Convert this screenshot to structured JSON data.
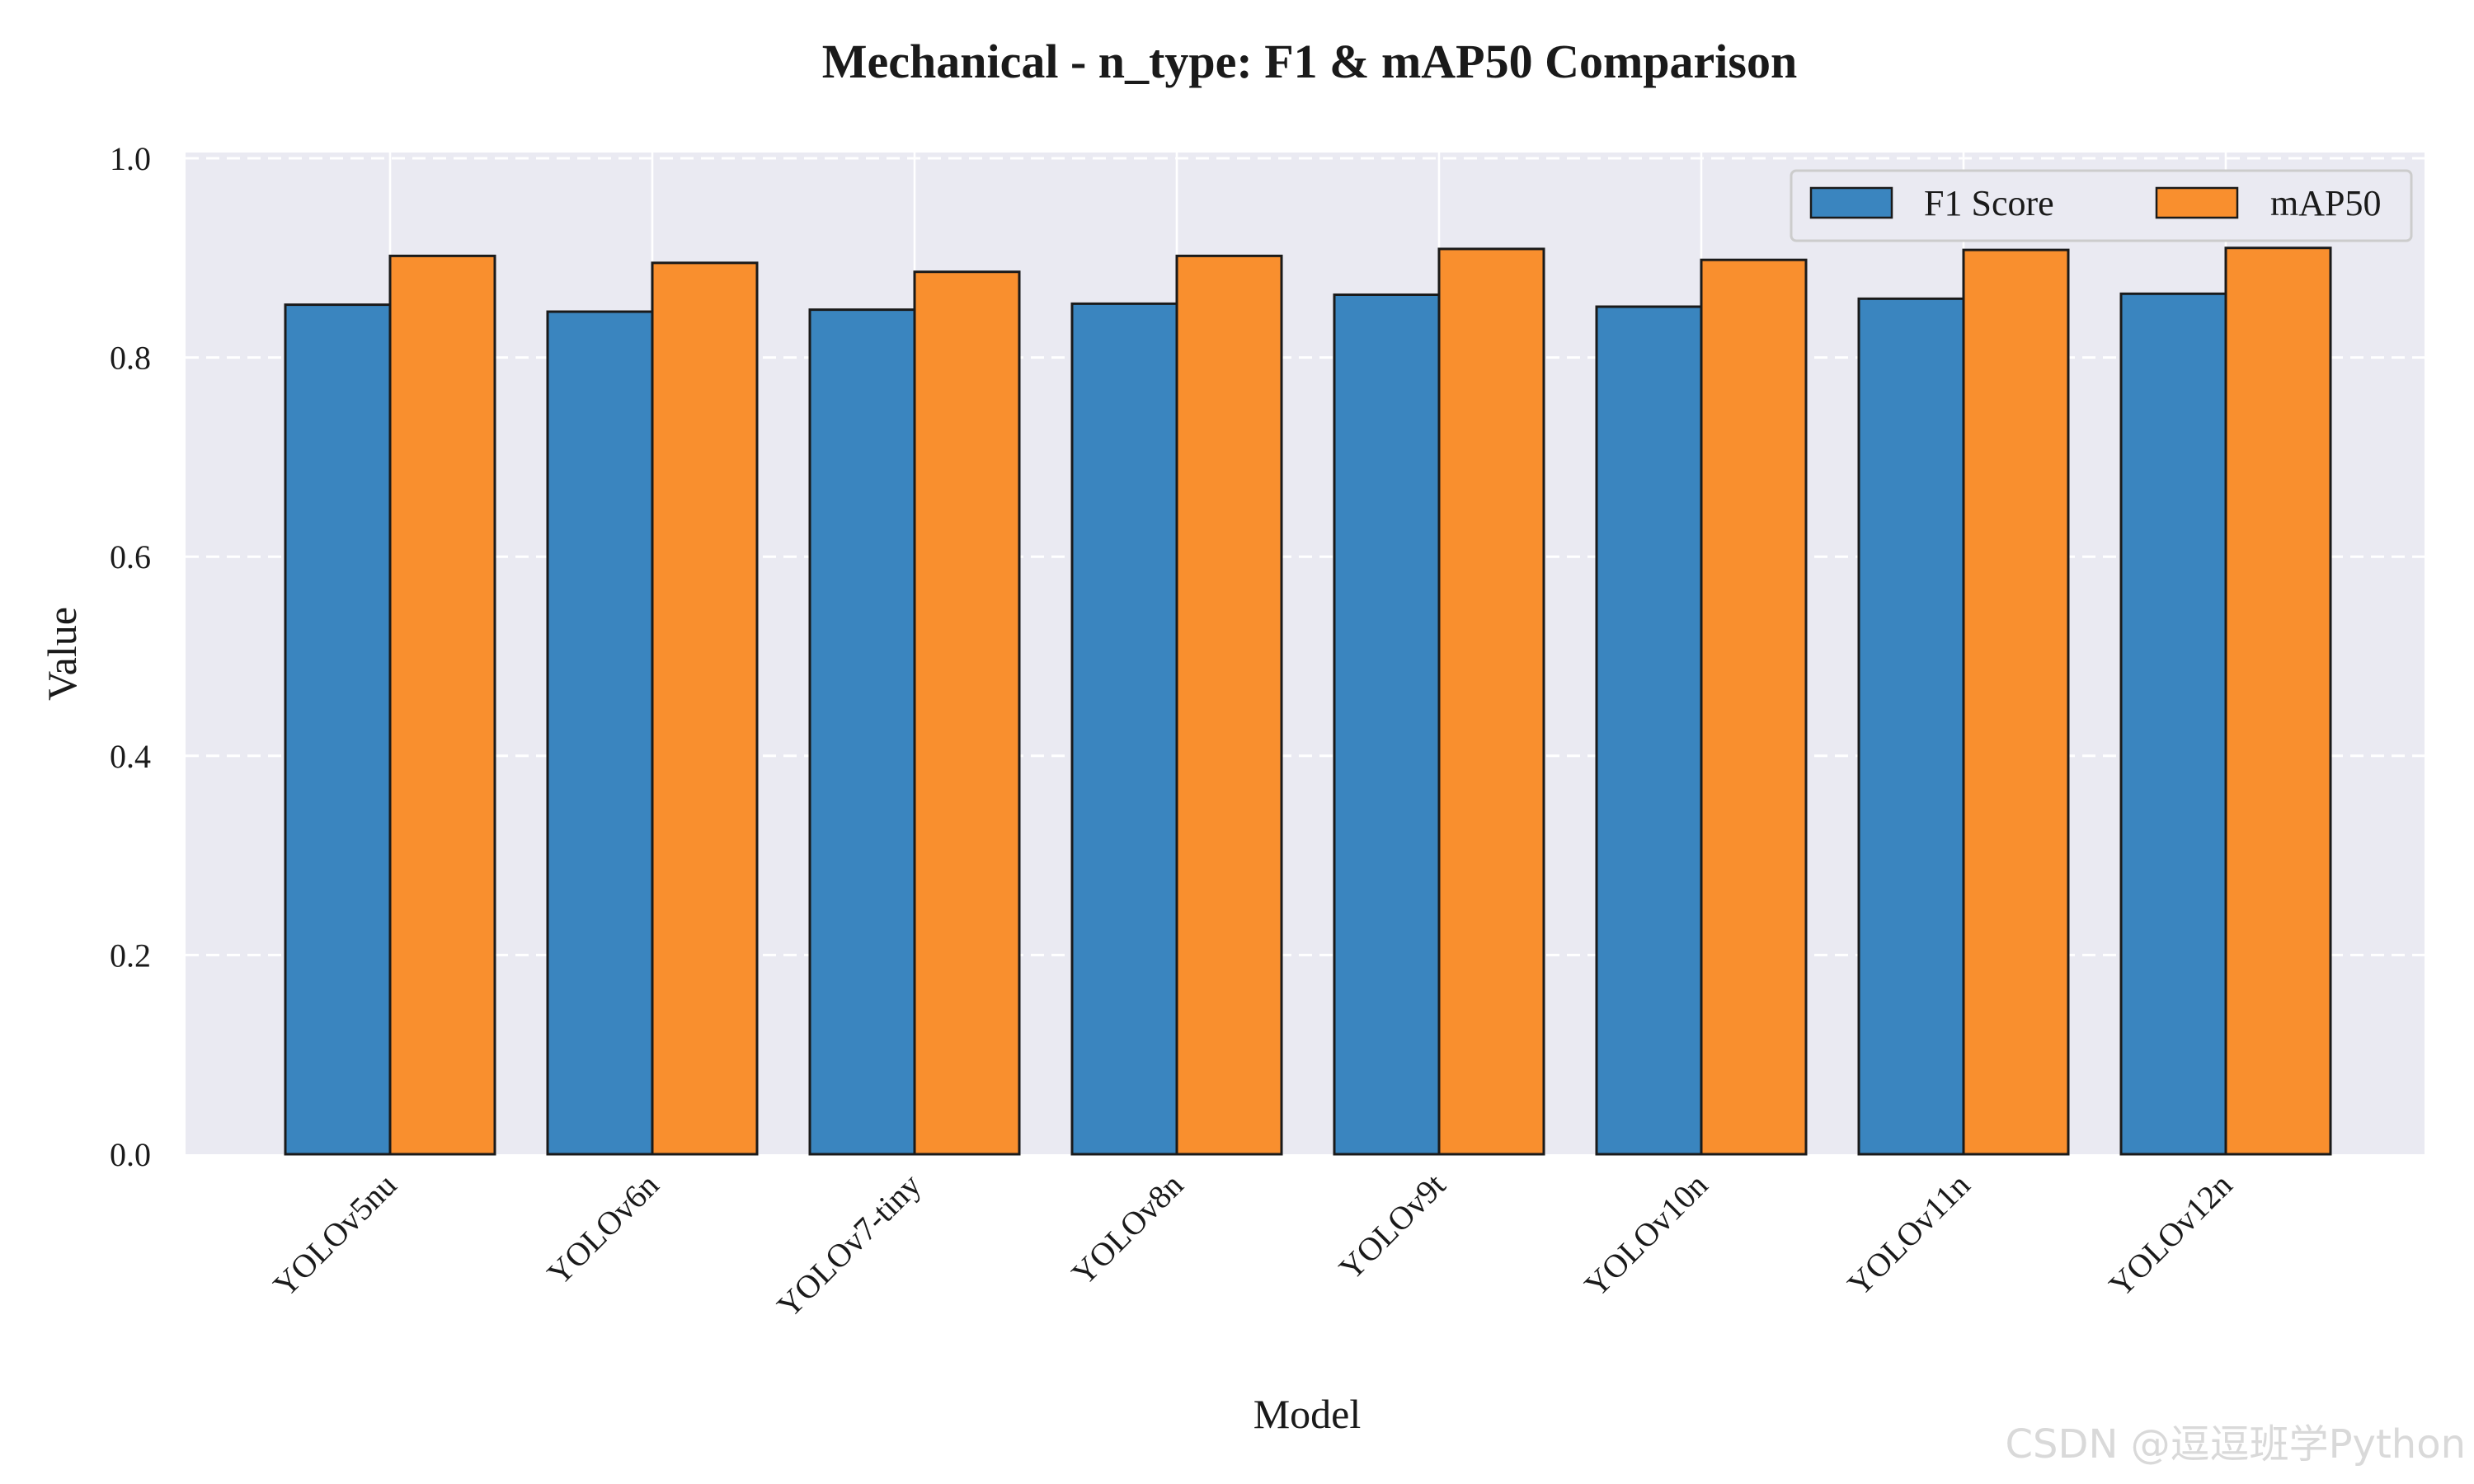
{
  "chart_data": {
    "type": "bar",
    "title": "Mechanical - n_type: F1 & mAP50 Comparison",
    "xlabel": "Model",
    "ylabel": "Value",
    "ylim": [
      0,
      1.0
    ],
    "yticks": [
      "0.0",
      "0.2",
      "0.4",
      "0.6",
      "0.8",
      "1.0"
    ],
    "categories": [
      "YOLOv5nu",
      "YOLOv6n",
      "YOLOv7-tiny",
      "YOLOv8n",
      "YOLOv9t",
      "YOLOv10n",
      "YOLOv11n",
      "YOLOv12n"
    ],
    "series": [
      {
        "name": "F1 Score",
        "color": "#3a85bf",
        "values": [
          0.853,
          0.846,
          0.848,
          0.854,
          0.863,
          0.851,
          0.859,
          0.864
        ]
      },
      {
        "name": "mAP50",
        "color": "#f98f2e",
        "values": [
          0.902,
          0.895,
          0.886,
          0.902,
          0.909,
          0.898,
          0.908,
          0.91
        ]
      }
    ],
    "grid": true,
    "legend_position": "top-right",
    "background_color": "#eaeaf2"
  },
  "watermark": "CSDN @逗逗班学Python"
}
